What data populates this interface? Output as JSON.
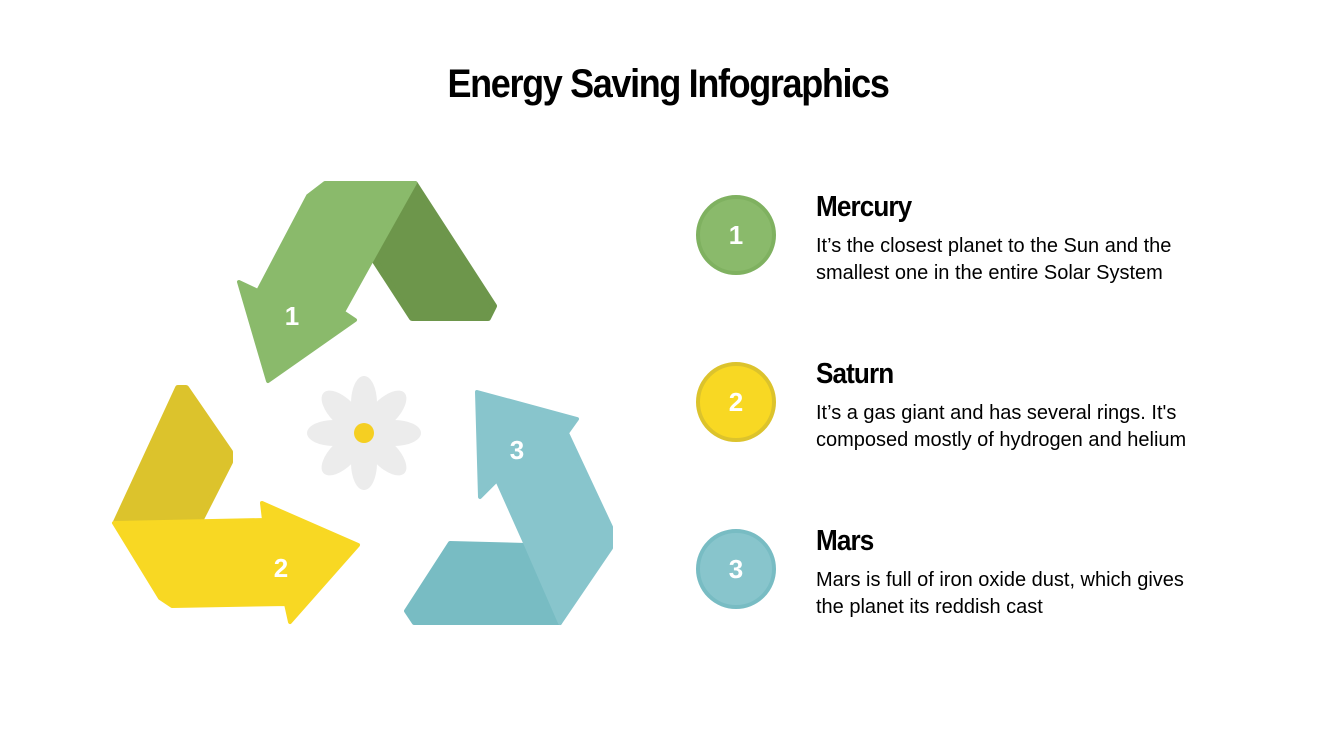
{
  "title": "Energy Saving Infographics",
  "colors": {
    "green": "#8aba6b",
    "green_dark": "#6d964b",
    "yellow": "#f8d823",
    "yellow_dark": "#dcc32c",
    "teal": "#88c5cc",
    "teal_dark": "#78bcc3",
    "flower": "#ececec",
    "flower_center": "#f5cf22"
  },
  "diagram": {
    "arrows": [
      {
        "number": "1"
      },
      {
        "number": "2"
      },
      {
        "number": "3"
      }
    ],
    "icon": "daisy-flower-icon"
  },
  "items": [
    {
      "number": "1",
      "title": "Mercury",
      "lines": [
        "It’s the closest planet to the Sun and the",
        "smallest one in the entire Solar System"
      ]
    },
    {
      "number": "2",
      "title": "Saturn",
      "lines": [
        "It’s a gas giant and has several rings. It's",
        "composed mostly of hydrogen and helium"
      ]
    },
    {
      "number": "3",
      "title": "Mars",
      "lines": [
        "Mars is full of iron oxide dust, which gives",
        "the planet its reddish cast"
      ]
    }
  ]
}
